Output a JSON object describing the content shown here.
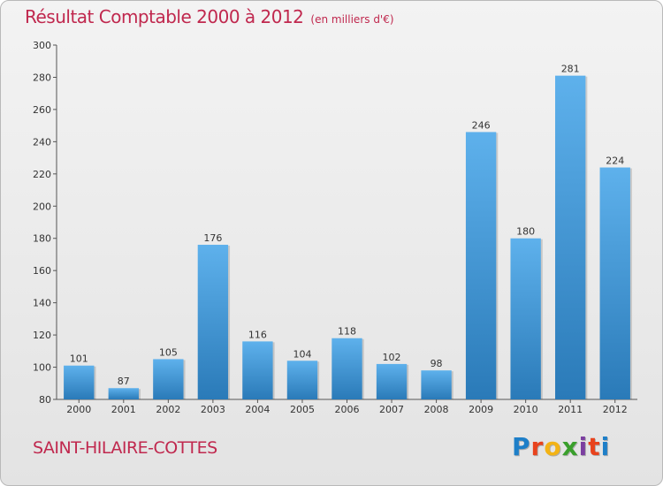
{
  "header": {
    "title": "Résultat Comptable 2000 à 2012",
    "subtitle": "(en milliers d'€)"
  },
  "footer": {
    "commune": "SAINT-HILAIRE-COTTES",
    "logo_letters": [
      "P",
      "r",
      "o",
      "x",
      "i",
      "t",
      "i"
    ]
  },
  "colors": {
    "title": "#c0284e",
    "bar_light": "#5eb1ec",
    "bar_dark": "#2a7ab8",
    "logo": [
      "#1e7fc8",
      "#e8431d",
      "#f3b315",
      "#3a9f2c",
      "#7b3fa0",
      "#e8431d",
      "#1e7fc8"
    ]
  },
  "chart_data": {
    "type": "bar",
    "categories": [
      "2000",
      "2001",
      "2002",
      "2003",
      "2004",
      "2005",
      "2006",
      "2007",
      "2008",
      "2009",
      "2010",
      "2011",
      "2012"
    ],
    "values": [
      101,
      87,
      105,
      176,
      116,
      104,
      118,
      102,
      98,
      246,
      180,
      281,
      224
    ],
    "title": "Résultat Comptable 2000 à 2012",
    "xlabel": "",
    "ylabel": "",
    "ylim": [
      80,
      300
    ],
    "yticks": [
      80,
      100,
      120,
      140,
      160,
      180,
      200,
      220,
      240,
      260,
      280,
      300
    ],
    "grid": false,
    "legend": "none"
  }
}
